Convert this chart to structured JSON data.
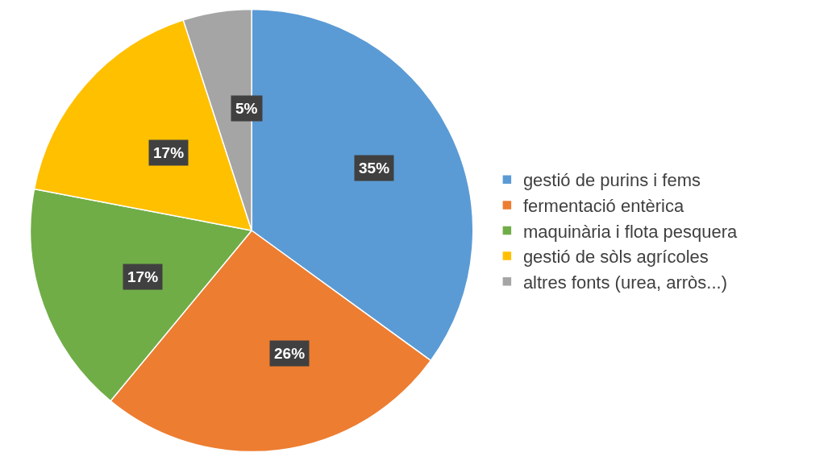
{
  "chart_data": {
    "type": "pie",
    "categories": [
      "gestió de purins i fems",
      "fermentació entèrica",
      "maquinària i flota pesquera",
      "gestió de sòls agrícoles",
      "altres fonts (urea, arròs...)"
    ],
    "values": [
      35,
      26,
      17,
      17,
      5
    ],
    "value_labels": [
      "35%",
      "26%",
      "17%",
      "17%",
      "5%"
    ],
    "colors": [
      "#5b9bd5",
      "#ed7d31",
      "#70ad47",
      "#ffc000",
      "#a5a5a5"
    ],
    "legend": "right"
  }
}
